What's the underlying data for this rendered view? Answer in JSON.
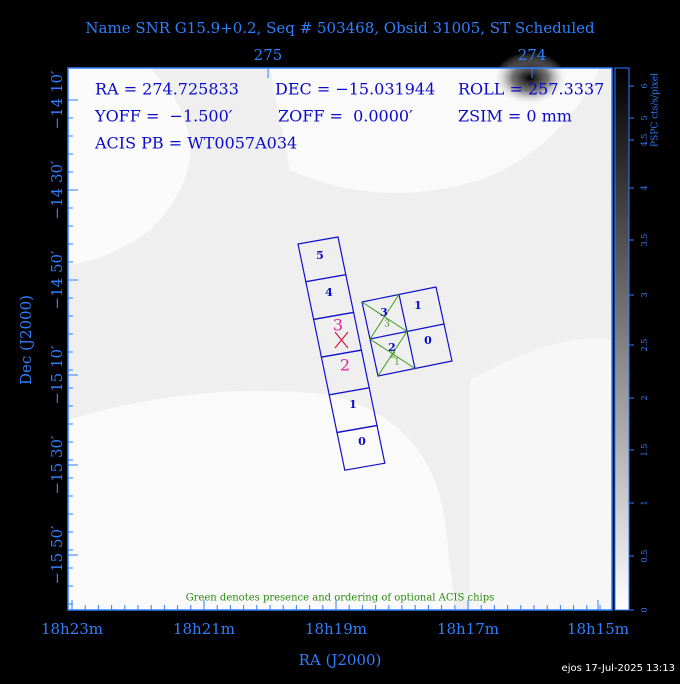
{
  "header": {
    "title": "Name SNR G15.9+0.2, Seq # 503468, Obsid 31005, ST Scheduled"
  },
  "axes": {
    "top_labels": [
      "275",
      "274"
    ],
    "left_labels": [
      "−14 10′",
      "−14 30′",
      "−14 50′",
      "−15 10′",
      "−15 30′",
      "−15 50′"
    ],
    "bottom_labels": [
      "18h23m",
      "18h21m",
      "18h19m",
      "18h17m",
      "18h15m"
    ],
    "x_title": "RA (J2000)",
    "y_title": "Dec (J2000)"
  },
  "info": {
    "line1": [
      "RA = 274.725833",
      "DEC = −15.031944",
      "ROLL = 257.3337"
    ],
    "line2": [
      "YOFF =  −1.500′",
      "ZOFF =  0.0000′",
      "ZSIM = 0 mm"
    ],
    "line3": "ACIS PB = WT0057A034"
  },
  "chips": {
    "s_array": [
      "5",
      "4",
      "3",
      "2",
      "1",
      "0"
    ],
    "i_array": [
      "3",
      "1",
      "2",
      "0"
    ],
    "optional": [
      "3",
      "2",
      "1"
    ]
  },
  "note": "Green denotes presence and ordering of optional ACIS chips",
  "colorbar": {
    "title": "PSPC cts/s/pixel",
    "ticks": [
      "0",
      "0.5",
      "1",
      "1.5",
      "2",
      "2.5",
      "3",
      "3.5",
      "4",
      "4.5",
      "5",
      "6"
    ]
  },
  "footer": "ejos 17-Jul-2025 13:13"
}
